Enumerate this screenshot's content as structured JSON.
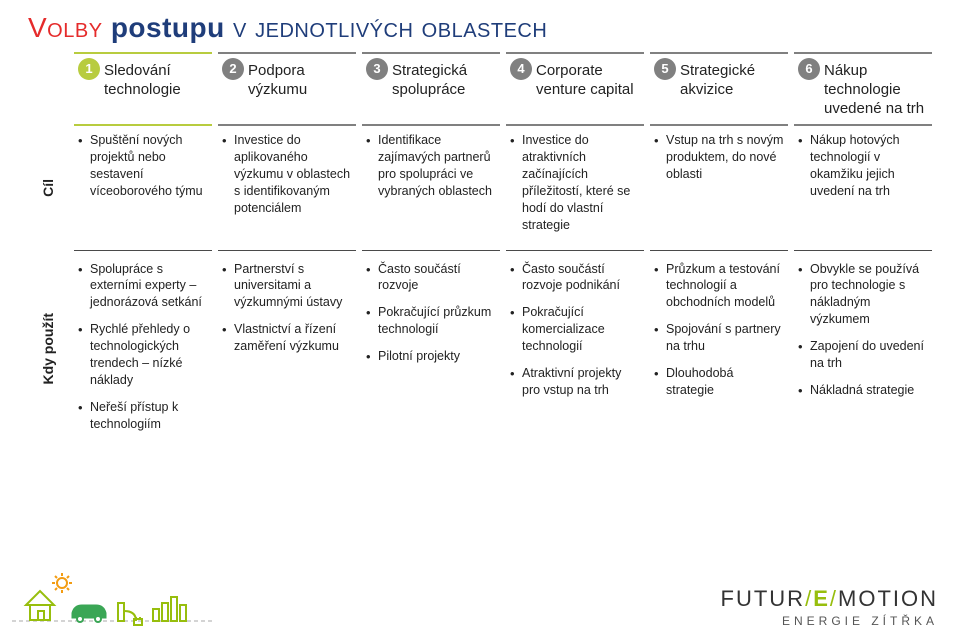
{
  "title": {
    "part1": "Volby",
    "part2": "postupu",
    "part3": "v jednotlivých oblastech"
  },
  "side_labels": {
    "cil": "Cíl",
    "kdy": "Kdy použít"
  },
  "columns": [
    {
      "num": "1",
      "header": "Sledování technologie",
      "border_color": "#b8cc3f",
      "num_bg": "#b8cc3f",
      "cil": [
        "Spuštění nových projektů nebo sestavení víceoborového týmu"
      ],
      "kdy": [
        "Spolupráce s externími experty – jednorázová setkání",
        "Rychlé přehledy o technologických trendech – nízké náklady",
        "Neřeší přístup k technologiím"
      ]
    },
    {
      "num": "2",
      "header": "Podpora výzkumu",
      "border_color": "#808080",
      "num_bg": "#808080",
      "cil": [
        "Investice do aplikovaného výzkumu v oblastech s identifikovaným potenciálem"
      ],
      "kdy": [
        "Partnerství s universitami a výzkumnými ústavy",
        "Vlastnictví a řízení zaměření výzkumu"
      ]
    },
    {
      "num": "3",
      "header": "Strategická spolupráce",
      "border_color": "#808080",
      "num_bg": "#808080",
      "cil": [
        "Identifikace zajímavých partnerů pro spolupráci ve vybraných oblastech"
      ],
      "kdy": [
        "Často součástí rozvoje",
        "Pokračující průzkum technologií",
        "Pilotní projekty"
      ]
    },
    {
      "num": "4",
      "header": "Corporate venture capital",
      "border_color": "#808080",
      "num_bg": "#808080",
      "cil": [
        "Investice do atraktivních začínajících příležitostí, které se hodí do vlastní strategie"
      ],
      "kdy": [
        "Často součástí rozvoje podnikání",
        "Pokračující komercializace technologií",
        "Atraktivní projekty pro vstup na trh"
      ]
    },
    {
      "num": "5",
      "header": "Strategické akvizice",
      "border_color": "#808080",
      "num_bg": "#808080",
      "cil": [
        "Vstup na trh s novým produktem, do nové oblasti"
      ],
      "kdy": [
        "Průzkum a testování technologií a obchodních modelů",
        "Spojování s partnery na trhu",
        "Dlouhodobá strategie"
      ]
    },
    {
      "num": "6",
      "header": "Nákup technologie uvedené na trh",
      "border_color": "#808080",
      "num_bg": "#808080",
      "cil": [
        "Nákup hotových technologií v okamžiku jejich uvedení na trh"
      ],
      "kdy": [
        "Obvykle se používá pro technologie s nákladným výzkumem",
        "Zapojení do uvedení na trh",
        "Nákladná strategie"
      ]
    }
  ],
  "footer": {
    "brand_main_1": "FUTUR",
    "brand_main_slash1": "/",
    "brand_main_e": "E",
    "brand_main_slash2": "/",
    "brand_main_2": "MOTION",
    "brand_sub": "ENERGIE ZÍTŘKA",
    "art_colors": {
      "sun": "#f39c12",
      "house": "#97be0d",
      "car": "#3aa655",
      "plug": "#97be0d",
      "bars": "#97be0d",
      "line": "#a8a8a8"
    }
  }
}
